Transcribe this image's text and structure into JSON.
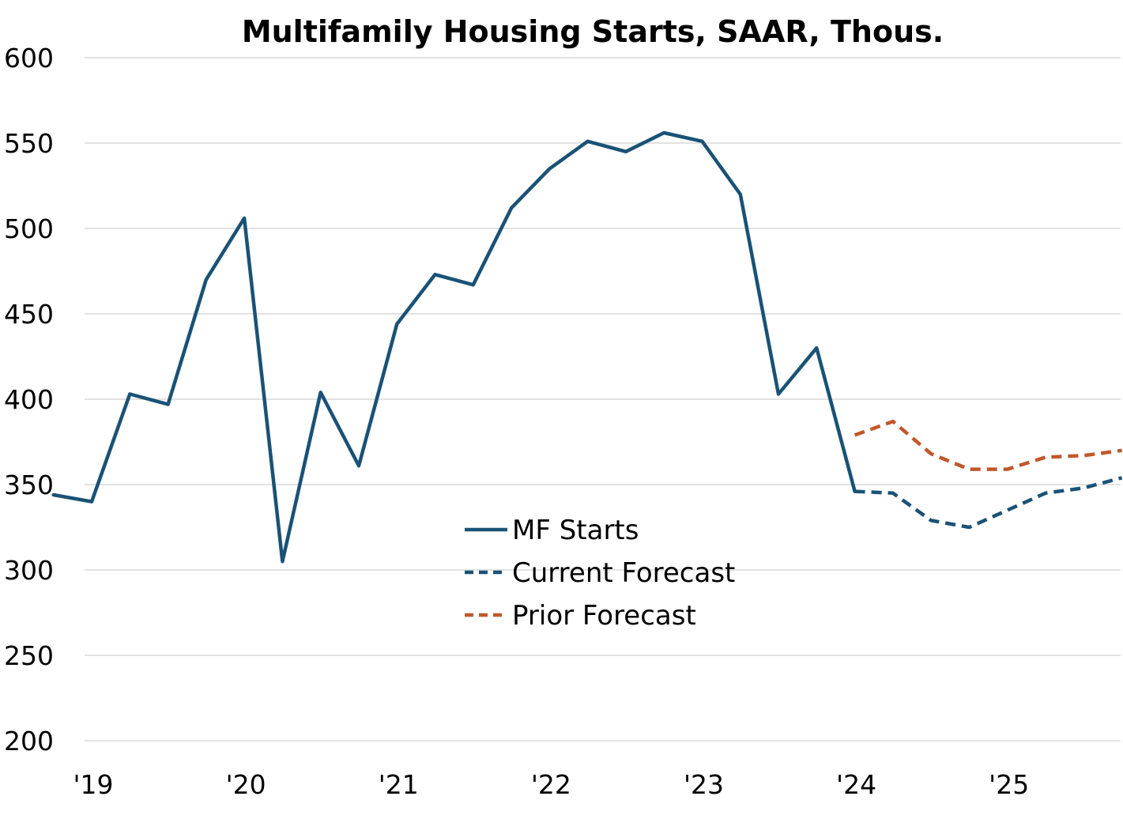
{
  "chart_data": {
    "type": "line",
    "title": "Multifamily Housing Starts, SAAR, Thous.",
    "xlabel": "",
    "ylabel": "",
    "ylim": [
      200,
      600
    ],
    "yticks": [
      200,
      250,
      300,
      350,
      400,
      450,
      500,
      550,
      600
    ],
    "x_tick_labels": [
      "'19",
      "'20",
      "'21",
      "'22",
      "'23",
      "'24",
      "'25"
    ],
    "x_tick_quarters": [
      "2019Q1",
      "2020Q1",
      "2021Q1",
      "2022Q1",
      "2023Q1",
      "2024Q1",
      "2025Q1"
    ],
    "grid": true,
    "legend_position": "center",
    "series": [
      {
        "name": "MF Starts",
        "color": "#1a5276",
        "style": "solid",
        "x": [
          "2018Q4",
          "2019Q1",
          "2019Q2",
          "2019Q3",
          "2019Q4",
          "2020Q1",
          "2020Q2",
          "2020Q3",
          "2020Q4",
          "2021Q1",
          "2021Q2",
          "2021Q3",
          "2021Q4",
          "2022Q1",
          "2022Q2",
          "2022Q3",
          "2022Q4",
          "2023Q1",
          "2023Q2",
          "2023Q3",
          "2023Q4",
          "2024Q1"
        ],
        "values": [
          344,
          340,
          403,
          397,
          470,
          506,
          305,
          404,
          361,
          444,
          473,
          467,
          512,
          535,
          551,
          545,
          556,
          551,
          520,
          403,
          430,
          346
        ]
      },
      {
        "name": "Current Forecast",
        "color": "#1a5276",
        "style": "dashed",
        "x": [
          "2024Q1",
          "2024Q2",
          "2024Q3",
          "2024Q4",
          "2025Q1",
          "2025Q2",
          "2025Q3",
          "2025Q4"
        ],
        "values": [
          346,
          345,
          329,
          325,
          335,
          345,
          348,
          354
        ]
      },
      {
        "name": "Prior Forecast",
        "color": "#c0582b",
        "style": "dashed",
        "x": [
          "2024Q1",
          "2024Q2",
          "2024Q3",
          "2024Q4",
          "2025Q1",
          "2025Q2",
          "2025Q3",
          "2025Q4"
        ],
        "values": [
          379,
          387,
          368,
          359,
          359,
          366,
          367,
          370
        ]
      }
    ]
  }
}
